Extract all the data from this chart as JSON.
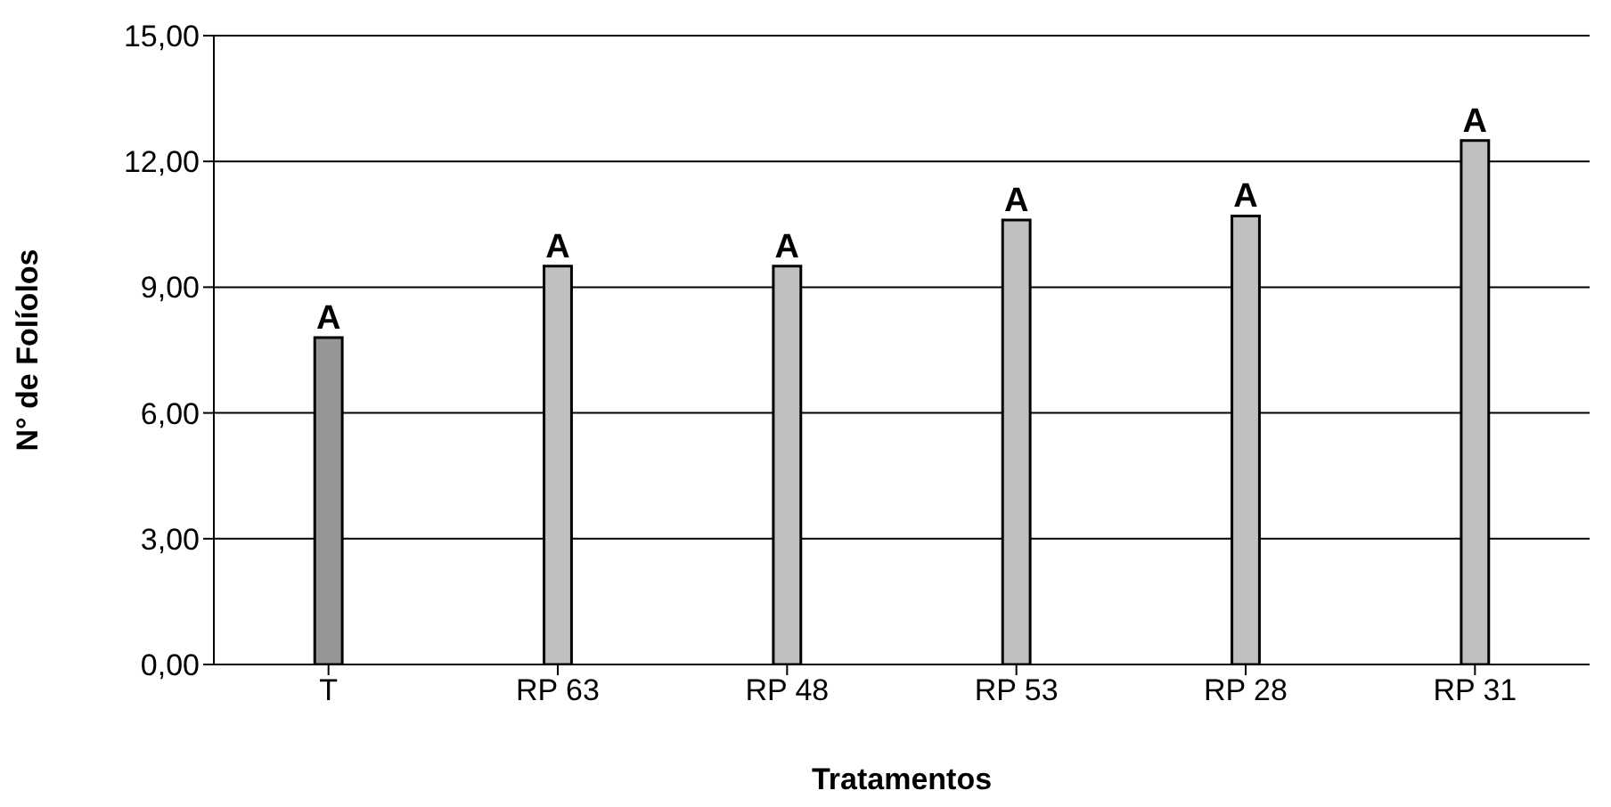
{
  "chart_data": {
    "type": "bar",
    "xlabel": "Tratamentos",
    "ylabel": "N° de Folíolos",
    "categories": [
      "T",
      "RP 63",
      "RP 48",
      "RP 53",
      "RP 28",
      "RP 31"
    ],
    "values": [
      7.8,
      9.5,
      9.5,
      10.6,
      10.7,
      12.5
    ],
    "colors": [
      "#969696",
      "#c0c0c0",
      "#c0c0c0",
      "#c0c0c0",
      "#c0c0c0",
      "#c0c0c0"
    ],
    "ylim": [
      0,
      15
    ],
    "yticks": [
      {
        "value": 0,
        "label": "0,00"
      },
      {
        "value": 3,
        "label": "3,00"
      },
      {
        "value": 6,
        "label": "6,00"
      },
      {
        "value": 9,
        "label": "9,00"
      },
      {
        "value": 12,
        "label": "12,00"
      },
      {
        "value": 15,
        "label": "15,00"
      }
    ],
    "grid": "y",
    "legend": false,
    "annotations": [
      {
        "text": "A",
        "x": "T",
        "y": 7.8
      },
      {
        "text": "A",
        "x": "RP 63",
        "y": 9.5
      },
      {
        "text": "A",
        "x": "RP 48",
        "y": 9.5
      },
      {
        "text": "A",
        "x": "RP 53",
        "y": 10.6
      },
      {
        "text": "A",
        "x": "RP 28",
        "y": 10.7
      },
      {
        "text": "A",
        "x": "RP 31",
        "y": 12.5
      }
    ]
  }
}
